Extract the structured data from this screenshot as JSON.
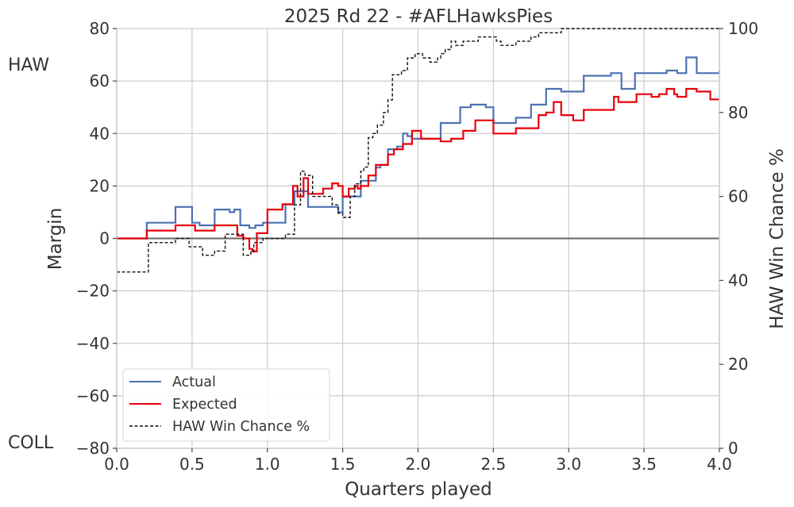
{
  "chart_data": {
    "type": "line",
    "title": "2025 Rd 22 - #AFLHawksPies",
    "xlabel": "Quarters played",
    "ylabel": "Margin",
    "y2label": "HAW Win Chance %",
    "top_label": "HAW",
    "bottom_label": "COLL",
    "xlim": [
      0,
      4
    ],
    "ylim": [
      -80,
      80
    ],
    "y2lim": [
      0,
      100
    ],
    "x_ticks": [
      0.0,
      0.5,
      1.0,
      1.5,
      2.0,
      2.5,
      3.0,
      3.5,
      4.0
    ],
    "x_tick_labels": [
      "0.0",
      "0.5",
      "1.0",
      "1.5",
      "2.0",
      "2.5",
      "3.0",
      "3.5",
      "4.0"
    ],
    "y_ticks": [
      80,
      60,
      40,
      20,
      0,
      -20,
      -40,
      -60,
      -80
    ],
    "y_tick_labels": [
      "80",
      "60",
      "40",
      "20",
      "0",
      "−20",
      "−40",
      "−60",
      "−80"
    ],
    "y2_ticks": [
      100,
      80,
      60,
      40,
      20,
      0
    ],
    "y2_tick_labels": [
      "100",
      "80",
      "60",
      "40",
      "20",
      "0"
    ],
    "grid": true,
    "legend_position": "bottom-left",
    "series": [
      {
        "name": "Actual",
        "axis": "left",
        "color": "#4c72b0",
        "style": "step-solid",
        "x": [
          0,
          0.2,
          0.39,
          0.5,
          0.55,
          0.65,
          0.75,
          0.78,
          0.82,
          0.88,
          0.92,
          0.97,
          1.12,
          1.18,
          1.22,
          1.27,
          1.47,
          1.5,
          1.56,
          1.62,
          1.65,
          1.72,
          1.75,
          1.8,
          1.83,
          1.86,
          1.9,
          1.93,
          1.96,
          2.03,
          2.15,
          2.2,
          2.28,
          2.35,
          2.45,
          2.5,
          2.55,
          2.65,
          2.7,
          2.75,
          2.85,
          2.95,
          3.0,
          3.1,
          3.28,
          3.35,
          3.44,
          3.52,
          3.65,
          3.72,
          3.78,
          3.85,
          4.0
        ],
        "y": [
          0,
          6,
          12,
          6,
          5,
          11,
          10,
          11,
          5,
          4,
          5,
          6,
          13,
          18,
          18,
          12,
          10,
          16,
          16,
          22,
          22,
          27,
          28,
          34,
          34,
          35,
          40,
          39,
          38,
          38,
          44,
          44,
          50,
          51,
          50,
          44,
          44,
          46,
          46,
          51,
          57,
          56,
          56,
          62,
          63,
          57,
          63,
          63,
          64,
          63,
          69,
          63,
          64
        ]
      },
      {
        "name": "Expected",
        "axis": "left",
        "color": "#e8000b",
        "style": "step-solid",
        "x": [
          0,
          0.2,
          0.32,
          0.39,
          0.47,
          0.52,
          0.58,
          0.65,
          0.72,
          0.8,
          0.84,
          0.88,
          0.9,
          0.93,
          1.0,
          1.1,
          1.17,
          1.2,
          1.24,
          1.27,
          1.32,
          1.37,
          1.43,
          1.47,
          1.5,
          1.54,
          1.58,
          1.6,
          1.62,
          1.67,
          1.72,
          1.8,
          1.84,
          1.9,
          1.96,
          2.02,
          2.15,
          2.22,
          2.3,
          2.38,
          2.5,
          2.55,
          2.65,
          2.7,
          2.8,
          2.85,
          2.9,
          2.95,
          3.03,
          3.1,
          3.3,
          3.33,
          3.45,
          3.5,
          3.55,
          3.6,
          3.65,
          3.7,
          3.72,
          3.78,
          3.85,
          3.94,
          4.0
        ],
        "y": [
          0,
          3,
          3,
          5,
          5,
          3,
          3,
          5,
          5,
          1,
          0,
          -4,
          -5,
          2,
          11,
          13,
          20,
          16,
          23,
          17,
          17,
          19,
          21,
          20,
          16,
          19,
          20,
          19,
          20,
          24,
          28,
          32,
          34,
          36,
          41,
          38,
          37,
          38,
          41,
          45,
          40,
          40,
          42,
          42,
          47,
          48,
          52,
          47,
          45,
          49,
          54,
          52,
          55,
          55,
          54,
          55,
          57,
          55,
          54,
          57,
          56,
          53,
          53
        ]
      },
      {
        "name": "HAW Win Chance %",
        "axis": "right",
        "color": "#111111",
        "style": "step-dashed",
        "x": [
          0,
          0.21,
          0.39,
          0.48,
          0.57,
          0.65,
          0.72,
          0.82,
          0.84,
          0.89,
          0.91,
          0.97,
          1.03,
          1.12,
          1.18,
          1.22,
          1.25,
          1.3,
          1.43,
          1.47,
          1.5,
          1.55,
          1.58,
          1.62,
          1.64,
          1.67,
          1.7,
          1.73,
          1.77,
          1.8,
          1.83,
          1.86,
          1.89,
          1.93,
          1.98,
          2.03,
          2.05,
          2.08,
          2.13,
          2.15,
          2.18,
          2.22,
          2.25,
          2.3,
          2.35,
          2.4,
          2.45,
          2.52,
          2.55,
          2.6,
          2.65,
          2.7,
          2.75,
          2.8,
          2.85,
          2.9,
          2.95,
          3.05,
          3.15,
          3.6,
          3.75,
          3.85,
          4.0
        ],
        "y": [
          42,
          49,
          50,
          48,
          46,
          47,
          51,
          51,
          46,
          47,
          49,
          50,
          50,
          51,
          58,
          66,
          65,
          60,
          58,
          56,
          55,
          60,
          63,
          66,
          67,
          74,
          75,
          77,
          80,
          83,
          89,
          89,
          90,
          93,
          94,
          93,
          93,
          92,
          93,
          94,
          95,
          97,
          96,
          97,
          97,
          98,
          98,
          97,
          96,
          96,
          97,
          97,
          98,
          99,
          99,
          99,
          100,
          100,
          100,
          100,
          100,
          100,
          100
        ]
      }
    ],
    "zero_line_color": "#666666"
  }
}
